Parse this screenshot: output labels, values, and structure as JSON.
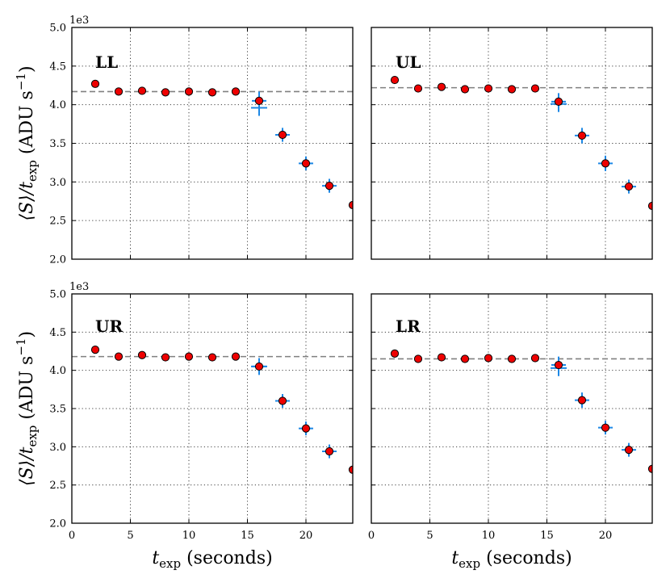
{
  "chart_data": {
    "type": "scatter",
    "layout": "2x2 grid, shared x and y axes",
    "xlim": [
      0,
      24
    ],
    "ylim": [
      2.0,
      5.0
    ],
    "x_ticks": [
      0,
      5,
      10,
      15,
      20
    ],
    "y_ticks": [
      2.0,
      2.5,
      3.0,
      3.5,
      4.0,
      4.5,
      5.0
    ],
    "y_tick_labels": [
      "2.0",
      "2.5",
      "3.0",
      "3.5",
      "4.0",
      "4.5",
      "5.0"
    ],
    "x_tick_labels": [
      "0",
      "5",
      "10",
      "15",
      "20"
    ],
    "y_multiplier": "1e3",
    "grid": true,
    "xlabel": {
      "prefix": "t",
      "sub": "exp",
      "suffix": " (seconds)"
    },
    "ylabel": {
      "open": "⟨S⟩/t",
      "sub": "exp",
      "mid": " (ADU s",
      "sup": "−1",
      "close": ")"
    },
    "marker_color": "#ee0000",
    "errorbar_color": "#1e88e5",
    "fit_line_color": "#808080",
    "panels": [
      {
        "label": "LL",
        "fit_level": 4.17,
        "x": [
          2,
          4,
          6,
          8,
          10,
          12,
          14,
          16,
          18,
          20,
          22,
          24
        ],
        "y": [
          4.27,
          4.17,
          4.18,
          4.16,
          4.17,
          4.16,
          4.17,
          4.05,
          3.61,
          3.24,
          2.95,
          2.7
        ],
        "yerr": [
          0,
          0,
          0,
          0,
          0,
          0,
          0,
          0.12,
          0.09,
          0.09,
          0.09,
          0.0
        ],
        "fit_err": [
          null,
          null,
          null,
          null,
          null,
          null,
          null,
          3.96,
          null,
          null,
          null,
          null
        ]
      },
      {
        "label": "UL",
        "fit_level": 4.22,
        "x": [
          2,
          4,
          6,
          8,
          10,
          12,
          14,
          16,
          18,
          20,
          22,
          24
        ],
        "y": [
          4.32,
          4.21,
          4.23,
          4.2,
          4.21,
          4.2,
          4.21,
          4.04,
          3.6,
          3.24,
          2.94,
          2.69
        ],
        "yerr": [
          0,
          0,
          0,
          0,
          0,
          0,
          0,
          0.11,
          0.1,
          0.1,
          0.09,
          0.0
        ],
        "fit_err": [
          null,
          null,
          null,
          null,
          null,
          null,
          null,
          4.01,
          null,
          null,
          null,
          null
        ]
      },
      {
        "label": "UR",
        "fit_level": 4.18,
        "x": [
          2,
          4,
          6,
          8,
          10,
          12,
          14,
          16,
          18,
          20,
          22,
          24
        ],
        "y": [
          4.27,
          4.18,
          4.2,
          4.17,
          4.18,
          4.17,
          4.18,
          4.05,
          3.6,
          3.24,
          2.94,
          2.7
        ],
        "yerr": [
          0,
          0,
          0,
          0,
          0,
          0,
          0,
          0.11,
          0.09,
          0.09,
          0.09,
          0.0
        ],
        "fit_err": [
          null,
          null,
          null,
          null,
          null,
          null,
          null,
          4.05,
          null,
          null,
          null,
          null
        ]
      },
      {
        "label": "LR",
        "fit_level": 4.15,
        "x": [
          2,
          4,
          6,
          8,
          10,
          12,
          14,
          16,
          18,
          20,
          22,
          24
        ],
        "y": [
          4.22,
          4.15,
          4.17,
          4.15,
          4.16,
          4.15,
          4.16,
          4.07,
          3.61,
          3.25,
          2.96,
          2.71
        ],
        "yerr": [
          0,
          0,
          0,
          0,
          0,
          0,
          0,
          0.11,
          0.1,
          0.09,
          0.09,
          0.0
        ],
        "fit_err": [
          null,
          null,
          null,
          null,
          null,
          null,
          null,
          4.03,
          null,
          null,
          null,
          null
        ]
      }
    ]
  }
}
